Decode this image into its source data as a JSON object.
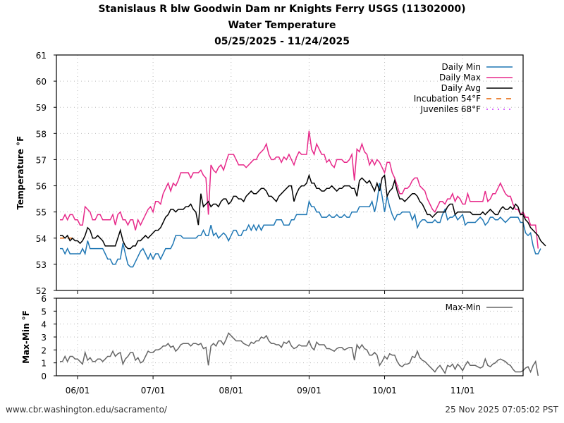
{
  "title": {
    "line1": "Stanislaus R blw Goodwin Dam nr Knights Ferry USGS (11302000)",
    "line2": "Water Temperature",
    "line3": "05/25/2025 - 11/24/2025"
  },
  "footer": {
    "url": "www.cbr.washington.edu/sacramento/",
    "timestamp": "25 Nov 2025 07:05:02 PST"
  },
  "colors": {
    "min": "#1f77b4",
    "max": "#e7298a",
    "avg": "#000000",
    "incubation": "#e66101",
    "juveniles": "#cc33ff",
    "range": "#666666"
  },
  "chart_data": [
    {
      "type": "line",
      "title": "Water Temperature",
      "ylabel": "Temperature °F",
      "xlabel": "",
      "ylim": [
        52,
        61
      ],
      "yticks": [
        "52",
        "53",
        "54",
        "55",
        "56",
        "57",
        "58",
        "59",
        "60",
        "61"
      ],
      "xticks": [
        "06/01",
        "07/01",
        "08/01",
        "09/01",
        "10/01",
        "11/01"
      ],
      "xtick_days": [
        7,
        37,
        68,
        99,
        129,
        160
      ],
      "x_start": "05/25/2025",
      "n_days": 184,
      "grid": true,
      "legend_position": "top-right",
      "legend": [
        "Daily Min",
        "Daily Max",
        "Daily Avg",
        "Incubation 54°F",
        "Juveniles 68°F"
      ],
      "threshold_lines": [
        {
          "name": "Incubation 54°F",
          "value": 54,
          "day_range": [
            0,
            6
          ]
        },
        {
          "name": "Juveniles 68°F",
          "value": 68
        }
      ],
      "series": [
        {
          "name": "Daily Max",
          "values": [
            54.7,
            54.7,
            54.9,
            54.7,
            54.9,
            54.9,
            54.7,
            54.7,
            54.5,
            54.5,
            55.2,
            55.1,
            55.0,
            54.7,
            54.7,
            54.9,
            54.9,
            54.7,
            54.7,
            54.7,
            54.7,
            54.9,
            54.5,
            54.9,
            55.0,
            54.7,
            54.7,
            54.5,
            54.7,
            54.7,
            54.3,
            54.7,
            54.5,
            54.7,
            54.9,
            55.1,
            55.2,
            55.0,
            55.4,
            55.4,
            55.3,
            55.7,
            55.9,
            56.1,
            55.8,
            56.1,
            56.0,
            56.2,
            56.5,
            56.5,
            56.5,
            56.5,
            56.3,
            56.5,
            56.5,
            56.5,
            56.6,
            56.4,
            56.3,
            54.9,
            56.8,
            56.6,
            56.5,
            56.7,
            56.8,
            56.6,
            56.9,
            57.2,
            57.2,
            57.2,
            57.0,
            56.8,
            56.8,
            56.8,
            56.7,
            56.8,
            56.9,
            57.0,
            57.0,
            57.2,
            57.3,
            57.4,
            57.6,
            57.2,
            57.0,
            57.0,
            57.1,
            57.1,
            56.9,
            57.1,
            57.0,
            57.2,
            57.0,
            56.8,
            57.1,
            57.3,
            57.2,
            57.2,
            57.2,
            58.1,
            57.4,
            57.2,
            57.6,
            57.4,
            57.2,
            57.2,
            56.9,
            57.0,
            56.8,
            56.7,
            57.0,
            57.0,
            57.0,
            56.9,
            56.9,
            57.0,
            57.2,
            56.2,
            57.4,
            57.3,
            57.6,
            57.3,
            57.2,
            56.8,
            57.0,
            56.8,
            57.0,
            56.9,
            56.7,
            56.5,
            56.9,
            56.9,
            56.5,
            56.3,
            56.0,
            55.7,
            55.7,
            55.9,
            55.9,
            56.0,
            56.2,
            56.3,
            56.3,
            56.0,
            55.9,
            55.8,
            55.5,
            55.3,
            55.1,
            55.0,
            55.2,
            55.4,
            55.4,
            55.3,
            55.5,
            55.5,
            55.7,
            55.4,
            55.6,
            55.5,
            55.3,
            55.3,
            55.7,
            55.4,
            55.4,
            55.4,
            55.4,
            55.4,
            55.4,
            55.8,
            55.4,
            55.5,
            55.7,
            55.7,
            55.9,
            56.1,
            55.9,
            55.7,
            55.6,
            55.6,
            55.3,
            55.1,
            55.1,
            54.9,
            55.0,
            54.8,
            54.8,
            54.5,
            54.5,
            54.5,
            53.6
          ]
        },
        {
          "name": "Daily Min",
          "values": [
            53.6,
            53.6,
            53.4,
            53.6,
            53.4,
            53.4,
            53.4,
            53.4,
            53.4,
            53.6,
            53.4,
            53.9,
            53.6,
            53.6,
            53.6,
            53.6,
            53.6,
            53.6,
            53.4,
            53.2,
            53.2,
            53.0,
            53.0,
            53.2,
            53.2,
            53.8,
            53.4,
            53.0,
            52.9,
            52.9,
            53.1,
            53.3,
            53.5,
            53.6,
            53.4,
            53.2,
            53.4,
            53.2,
            53.4,
            53.4,
            53.2,
            53.4,
            53.6,
            53.6,
            53.6,
            53.8,
            54.1,
            54.1,
            54.1,
            54.0,
            54.0,
            54.0,
            54.0,
            54.0,
            54.0,
            54.1,
            54.1,
            54.3,
            54.1,
            54.1,
            54.5,
            54.1,
            54.2,
            54.0,
            54.1,
            54.2,
            54.1,
            53.9,
            54.1,
            54.3,
            54.3,
            54.1,
            54.1,
            54.3,
            54.3,
            54.5,
            54.3,
            54.5,
            54.3,
            54.5,
            54.3,
            54.5,
            54.5,
            54.5,
            54.5,
            54.5,
            54.7,
            54.7,
            54.7,
            54.5,
            54.5,
            54.5,
            54.7,
            54.7,
            54.9,
            54.9,
            54.9,
            54.9,
            54.9,
            55.4,
            55.2,
            55.2,
            55.0,
            55.0,
            54.8,
            54.8,
            54.8,
            54.9,
            54.8,
            54.8,
            54.9,
            54.8,
            54.8,
            54.9,
            54.8,
            54.8,
            55.0,
            55.0,
            55.0,
            55.2,
            55.2,
            55.2,
            55.2,
            55.2,
            55.4,
            55.0,
            55.4,
            56.1,
            55.6,
            55.0,
            55.6,
            55.2,
            54.9,
            54.7,
            54.9,
            54.9,
            55.0,
            55.0,
            55.0,
            55.0,
            54.7,
            54.9,
            54.4,
            54.6,
            54.7,
            54.7,
            54.6,
            54.6,
            54.6,
            54.7,
            54.6,
            54.6,
            54.9,
            55.1,
            54.7,
            54.8,
            54.8,
            54.9,
            54.7,
            54.8,
            54.9,
            54.5,
            54.6,
            54.6,
            54.6,
            54.6,
            54.7,
            54.8,
            54.7,
            54.5,
            54.6,
            54.8,
            54.8,
            54.7,
            54.7,
            54.8,
            54.7,
            54.6,
            54.7,
            54.8,
            54.8,
            54.8,
            54.8,
            54.6,
            54.6,
            54.2,
            54.1,
            54.2,
            53.7,
            53.4,
            53.4,
            53.6
          ]
        },
        {
          "name": "Daily Avg",
          "values": [
            54.1,
            54.1,
            54.0,
            54.1,
            53.9,
            54.0,
            53.9,
            53.9,
            53.8,
            53.9,
            54.1,
            54.4,
            54.3,
            54.0,
            54.0,
            54.1,
            54.0,
            53.9,
            53.7,
            53.7,
            53.7,
            53.7,
            53.7,
            54.0,
            54.3,
            53.9,
            53.7,
            53.6,
            53.6,
            53.7,
            53.7,
            53.9,
            53.9,
            54.0,
            54.1,
            54.0,
            54.1,
            54.2,
            54.3,
            54.3,
            54.4,
            54.6,
            54.8,
            54.9,
            55.1,
            55.1,
            55.0,
            55.1,
            55.1,
            55.1,
            55.2,
            55.2,
            55.3,
            55.1,
            55.0,
            54.5,
            55.7,
            55.2,
            55.3,
            55.4,
            55.2,
            55.3,
            55.3,
            55.2,
            55.4,
            55.5,
            55.5,
            55.3,
            55.4,
            55.6,
            55.6,
            55.5,
            55.5,
            55.4,
            55.6,
            55.7,
            55.8,
            55.7,
            55.7,
            55.8,
            55.9,
            55.9,
            55.8,
            55.6,
            55.6,
            55.5,
            55.4,
            55.6,
            55.7,
            55.8,
            55.9,
            56.0,
            56.0,
            55.4,
            55.7,
            55.9,
            56.0,
            56.0,
            56.1,
            56.4,
            56.1,
            56.1,
            55.9,
            55.9,
            55.8,
            55.8,
            55.9,
            55.9,
            56.0,
            55.9,
            55.8,
            55.9,
            55.9,
            56.0,
            56.0,
            56.0,
            55.9,
            55.9,
            55.6,
            56.2,
            56.3,
            56.2,
            56.1,
            56.2,
            56.0,
            55.8,
            56.1,
            55.8,
            56.3,
            56.4,
            55.6,
            55.8,
            55.9,
            56.2,
            55.8,
            55.5,
            55.5,
            55.4,
            55.5,
            55.6,
            55.7,
            55.7,
            55.6,
            55.4,
            55.3,
            55.1,
            54.9,
            54.9,
            54.8,
            54.9,
            55.0,
            55.0,
            55.0,
            55.0,
            55.2,
            55.3,
            55.3,
            54.9,
            55.0,
            55.0,
            55.0,
            55.0,
            55.0,
            55.0,
            54.9,
            54.9,
            54.9,
            54.9,
            55.0,
            54.9,
            55.0,
            55.1,
            55.0,
            54.9,
            54.9,
            55.1,
            55.2,
            55.1,
            55.1,
            55.2,
            55.1,
            55.3,
            55.2,
            54.9,
            54.9,
            54.7,
            54.6,
            54.4,
            54.3,
            54.2,
            54.1,
            53.9,
            53.8,
            53.7
          ]
        },
        {
          "name": "Max-Min",
          "ylabel": "Max-Min °F",
          "ylim": [
            0,
            6
          ],
          "yticks": [
            "0",
            "1",
            "2",
            "3",
            "4",
            "5",
            "6"
          ],
          "legend_position": "top-right",
          "legend": [
            "Max-Min"
          ],
          "derived_from": [
            "Daily Max",
            "Daily Min"
          ]
        }
      ]
    }
  ]
}
